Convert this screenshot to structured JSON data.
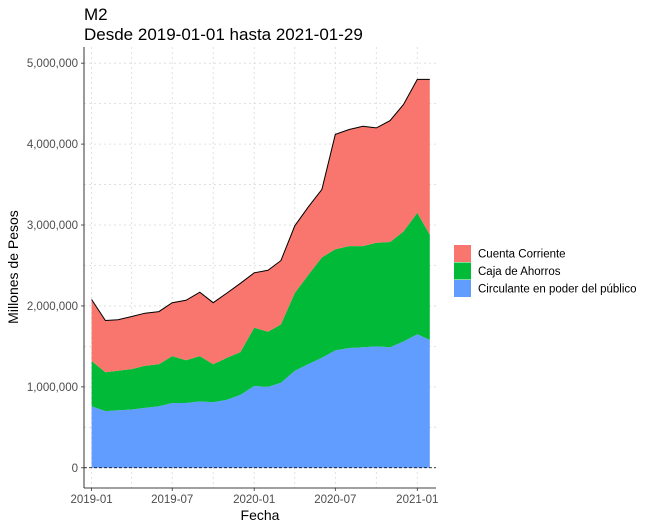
{
  "chart_data": {
    "type": "area",
    "stacked": true,
    "title": "M2",
    "subtitle": "Desde 2019-01-01 hasta 2021-01-29",
    "xlabel": "Fecha",
    "ylabel": "Millones de Pesos",
    "x_range": [
      "2018-12-15",
      "2021-02-12"
    ],
    "ylim": [
      -250000,
      5200000
    ],
    "x_ticks": [
      {
        "date": "2019-01-01",
        "label": "2019-01"
      },
      {
        "date": "2019-07-01",
        "label": "2019-07"
      },
      {
        "date": "2020-01-01",
        "label": "2020-01"
      },
      {
        "date": "2020-07-01",
        "label": "2020-07"
      },
      {
        "date": "2021-01-01",
        "label": "2021-01"
      }
    ],
    "y_ticks": [
      {
        "value": 0,
        "label": "0"
      },
      {
        "value": 1000000,
        "label": "1,000,000"
      },
      {
        "value": 2000000,
        "label": "2,000,000"
      },
      {
        "value": 3000000,
        "label": "3,000,000"
      },
      {
        "value": 4000000,
        "label": "4,000,000"
      },
      {
        "value": 5000000,
        "label": "5,000,000"
      }
    ],
    "grid": true,
    "zero_line": "dashed",
    "total_line": true,
    "legend_position": "right",
    "x": [
      "2019-01-01",
      "2019-02-01",
      "2019-03-01",
      "2019-04-01",
      "2019-05-01",
      "2019-06-01",
      "2019-07-01",
      "2019-08-01",
      "2019-09-01",
      "2019-10-01",
      "2019-11-01",
      "2019-12-01",
      "2020-01-01",
      "2020-02-01",
      "2020-03-01",
      "2020-04-01",
      "2020-05-01",
      "2020-06-01",
      "2020-07-01",
      "2020-08-01",
      "2020-09-01",
      "2020-10-01",
      "2020-11-01",
      "2020-12-01",
      "2021-01-01",
      "2021-01-29"
    ],
    "series": [
      {
        "name": "Circulante en poder del público",
        "color": "#619CFF",
        "values": [
          760000,
          700000,
          710000,
          720000,
          740000,
          760000,
          800000,
          800000,
          820000,
          810000,
          840000,
          900000,
          1010000,
          1000000,
          1050000,
          1200000,
          1280000,
          1360000,
          1450000,
          1480000,
          1490000,
          1500000,
          1490000,
          1560000,
          1650000,
          1580000
        ]
      },
      {
        "name": "Caja de Ahorros",
        "color": "#00BA38",
        "values": [
          560000,
          480000,
          490000,
          500000,
          520000,
          520000,
          580000,
          530000,
          560000,
          470000,
          520000,
          530000,
          720000,
          680000,
          720000,
          960000,
          1100000,
          1240000,
          1250000,
          1260000,
          1250000,
          1280000,
          1300000,
          1360000,
          1500000,
          1300000
        ]
      },
      {
        "name": "Cuenta Corriente",
        "color": "#F8766D",
        "values": [
          760000,
          640000,
          630000,
          650000,
          650000,
          650000,
          660000,
          740000,
          790000,
          760000,
          800000,
          850000,
          680000,
          760000,
          790000,
          830000,
          840000,
          840000,
          1420000,
          1440000,
          1480000,
          1420000,
          1500000,
          1570000,
          1650000,
          1920000
        ]
      }
    ],
    "totals": [
      2080000,
      1820000,
      1830000,
      1870000,
      1910000,
      1930000,
      2040000,
      2070000,
      2170000,
      2040000,
      2160000,
      2280000,
      2410000,
      2440000,
      2560000,
      2990000,
      3220000,
      3440000,
      4120000,
      4180000,
      4220000,
      4200000,
      4290000,
      4490000,
      4800000,
      4800000
    ]
  }
}
